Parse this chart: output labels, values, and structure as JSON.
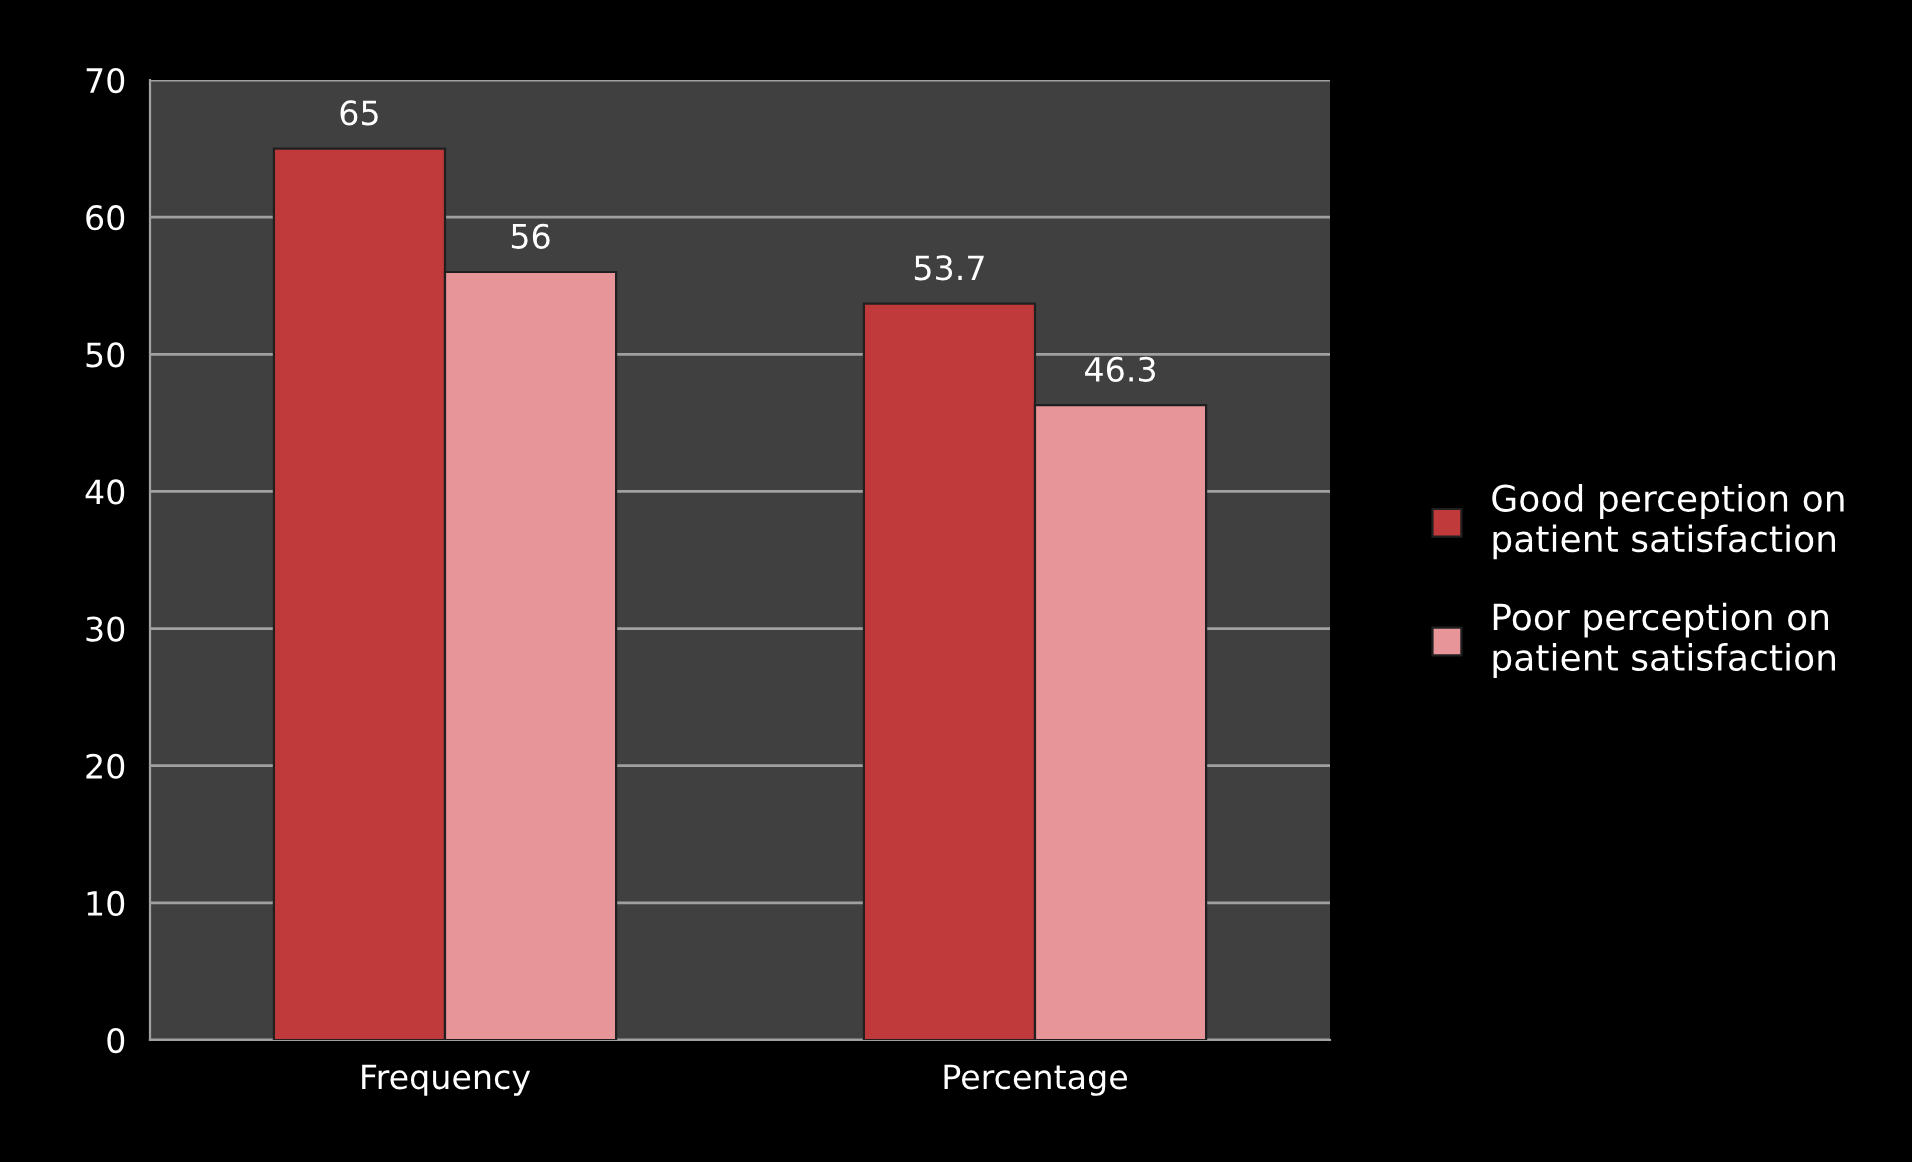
{
  "chart_data": {
    "type": "bar",
    "categories": [
      "Frequency",
      "Percentage"
    ],
    "series": [
      {
        "name": "Good perception on patient satisfaction",
        "color": "#c0393b",
        "values": [
          65,
          53.7
        ]
      },
      {
        "name": "Poor perception on patient satisfaction",
        "color": "#e8959a",
        "values": [
          56,
          46.3
        ]
      }
    ],
    "ylim": [
      0,
      70
    ],
    "yticks": [
      0,
      10,
      20,
      30,
      40,
      50,
      60,
      70
    ],
    "grid": "y",
    "legend": "right",
    "data_labels": true
  }
}
